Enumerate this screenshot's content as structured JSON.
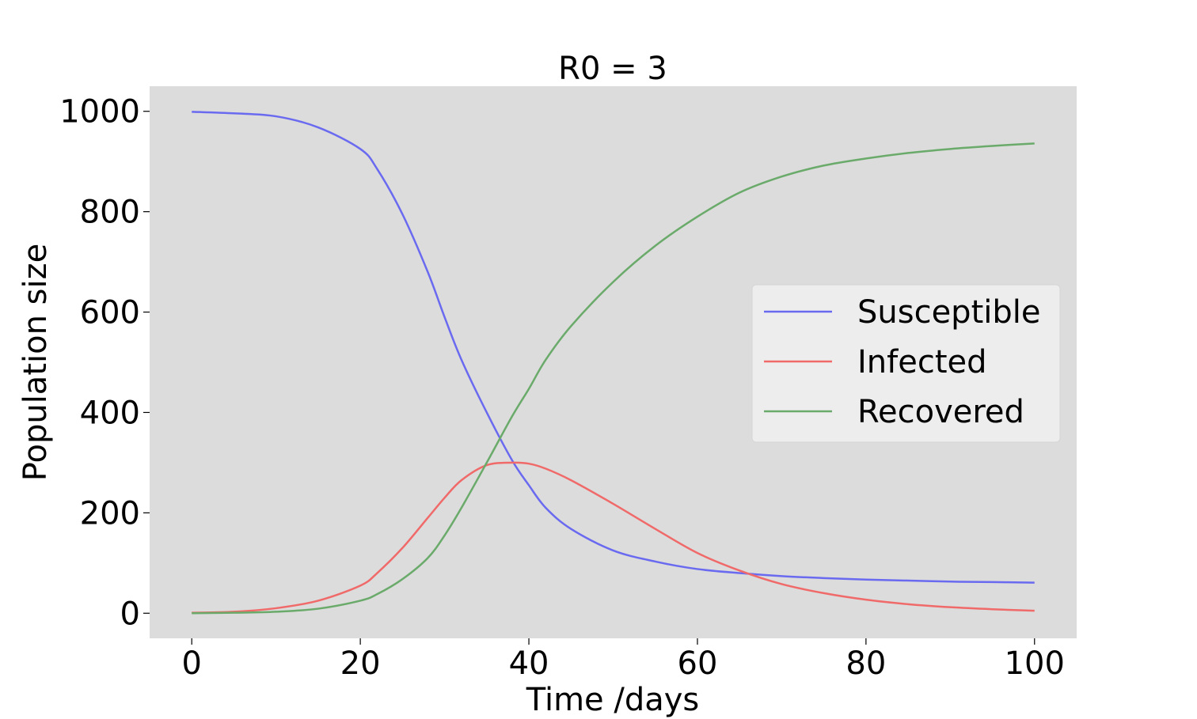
{
  "chart_data": {
    "type": "line",
    "title": "R0 = 3",
    "xlabel": "Time /days",
    "ylabel": "Population size",
    "xlim": [
      -5,
      105
    ],
    "ylim": [
      -50,
      1050
    ],
    "xticks": [
      0,
      20,
      40,
      60,
      80,
      100
    ],
    "xtick_labels": [
      "0",
      "20",
      "40",
      "60",
      "80",
      "100"
    ],
    "yticks": [
      0,
      200,
      400,
      600,
      800,
      1000
    ],
    "ytick_labels": [
      "0",
      "200",
      "400",
      "600",
      "800",
      "1000"
    ],
    "grid": false,
    "legend_position": "center-right",
    "background_color": "#dcdcdc",
    "x": [
      0,
      5,
      10,
      15,
      20,
      22,
      25,
      28,
      30,
      32,
      35,
      38,
      40,
      42,
      45,
      50,
      55,
      60,
      65,
      70,
      75,
      80,
      85,
      90,
      95,
      100
    ],
    "series": [
      {
        "name": "Susceptible",
        "color": "#6a6af0",
        "values": [
          999,
          996,
          990,
          968,
          925,
          885,
          795,
          680,
          590,
          505,
          400,
          305,
          255,
          210,
          168,
          125,
          103,
          88,
          80,
          74,
          70,
          67,
          65,
          63,
          62,
          61
        ]
      },
      {
        "name": "Infected",
        "color": "#f06a6a",
        "values": [
          1,
          3,
          10,
          25,
          55,
          80,
          130,
          190,
          230,
          265,
          295,
          300,
          298,
          288,
          265,
          218,
          168,
          120,
          85,
          58,
          40,
          27,
          18,
          12,
          8,
          5
        ]
      },
      {
        "name": "Recovered",
        "color": "#6aaa6a",
        "values": [
          0,
          1,
          3,
          9,
          25,
          38,
          68,
          110,
          155,
          210,
          300,
          392,
          447,
          505,
          572,
          660,
          732,
          790,
          838,
          870,
          892,
          906,
          917,
          925,
          931,
          936
        ]
      }
    ]
  }
}
